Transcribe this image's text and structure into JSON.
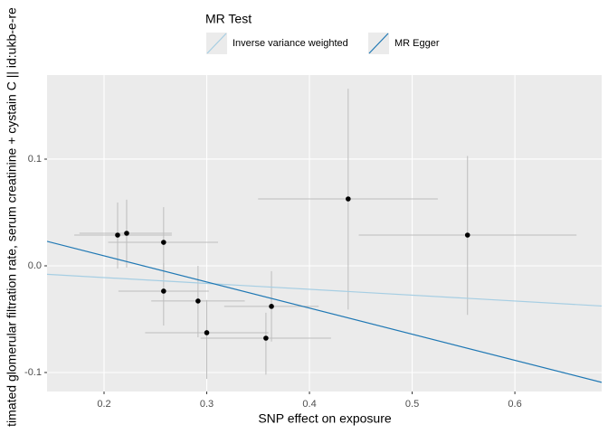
{
  "chart_data": {
    "type": "scatter",
    "legend_title": "MR Test",
    "xlabel": "SNP effect on exposure",
    "ylabel": "timated glomerular filtration rate, serum creatinine + cystain C || id:ukb-e-re",
    "x": [
      0.2132,
      0.222,
      0.258,
      0.258,
      0.2915,
      0.3,
      0.3576,
      0.363,
      0.4377,
      0.5539
    ],
    "values": [
      0.0288,
      0.0305,
      0.022,
      -0.0237,
      -0.033,
      -0.0627,
      -0.0678,
      -0.038,
      0.0627,
      0.0288
    ],
    "xmin": [
      0.171,
      0.176,
      0.204,
      0.214,
      0.246,
      0.24,
      0.294,
      0.317,
      0.35,
      0.448
    ],
    "xmax": [
      0.266,
      0.266,
      0.311,
      0.302,
      0.337,
      0.36,
      0.421,
      0.409,
      0.525,
      0.66
    ],
    "ymin": [
      -0.0025,
      -0.0017,
      -0.011,
      -0.056,
      -0.067,
      -0.106,
      -0.102,
      -0.071,
      -0.041,
      -0.046
    ],
    "ymax": [
      0.0593,
      0.062,
      0.055,
      0.0025,
      0.0,
      -0.032,
      -0.044,
      -0.005,
      0.166,
      0.103
    ],
    "point_color": "#000000",
    "errorbar_color": "#bdbdbd",
    "series": [
      {
        "name": "Inverse variance weighted",
        "color": "#a6cee3",
        "slope": -0.055,
        "intercept": 0
      },
      {
        "name": "MR Egger",
        "color": "#1f78b4",
        "slope": -0.2448,
        "intercept": 0.0583
      }
    ],
    "xlim": [
      0.1445,
      0.6845
    ],
    "ylim": [
      -0.1178,
      0.1788
    ],
    "xticks": [
      0.2,
      0.3,
      0.4,
      0.5,
      0.6
    ],
    "yticks": [
      -0.1,
      {
        "value": 0,
        "label": "0.0"
      },
      0.1
    ],
    "grid": true
  }
}
